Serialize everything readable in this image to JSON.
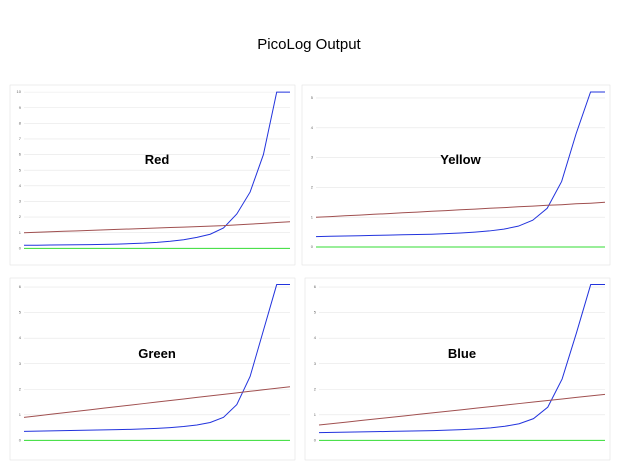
{
  "title": "PicoLog Output",
  "chart_data": [
    {
      "type": "line",
      "title": "Red",
      "x": [
        0,
        1,
        2,
        3,
        4,
        5,
        6,
        7,
        8,
        9,
        10,
        11,
        12,
        13,
        14,
        15,
        16,
        17,
        18,
        19,
        20
      ],
      "xlim": [
        0,
        20
      ],
      "ylim": [
        -0.3,
        10.2
      ],
      "yticks": [
        0,
        1,
        2,
        3,
        4,
        5,
        6,
        7,
        8,
        9,
        10
      ],
      "grid": true,
      "series": [
        {
          "color": "#2233dd",
          "values": [
            0.2,
            0.2,
            0.21,
            0.22,
            0.23,
            0.24,
            0.25,
            0.27,
            0.3,
            0.33,
            0.38,
            0.45,
            0.55,
            0.7,
            0.9,
            1.3,
            2.2,
            3.6,
            6.0,
            10,
            10
          ]
        },
        {
          "color": "#a05050",
          "values": [
            1.0,
            1.03,
            1.06,
            1.09,
            1.12,
            1.15,
            1.18,
            1.21,
            1.24,
            1.27,
            1.3,
            1.33,
            1.36,
            1.39,
            1.42,
            1.45,
            1.5,
            1.55,
            1.6,
            1.65,
            1.7
          ]
        },
        {
          "color": "#33dd33",
          "values": [
            0,
            0,
            0,
            0,
            0,
            0,
            0,
            0,
            0,
            0,
            0,
            0,
            0,
            0,
            0,
            0,
            0,
            0,
            0,
            0,
            0
          ]
        }
      ]
    },
    {
      "type": "line",
      "title": "Yellow",
      "x": [
        0,
        1,
        2,
        3,
        4,
        5,
        6,
        7,
        8,
        9,
        10,
        11,
        12,
        13,
        14,
        15,
        16,
        17,
        18,
        19,
        20
      ],
      "xlim": [
        0,
        20
      ],
      "ylim": [
        -0.2,
        5.3
      ],
      "yticks": [
        0,
        1,
        2,
        3,
        4,
        5
      ],
      "grid": true,
      "series": [
        {
          "color": "#2233dd",
          "values": [
            0.35,
            0.36,
            0.37,
            0.38,
            0.39,
            0.4,
            0.41,
            0.42,
            0.43,
            0.45,
            0.47,
            0.5,
            0.54,
            0.6,
            0.7,
            0.9,
            1.3,
            2.2,
            3.8,
            5.2,
            5.2
          ]
        },
        {
          "color": "#a05050",
          "values": [
            1.0,
            1.02,
            1.05,
            1.07,
            1.1,
            1.12,
            1.15,
            1.17,
            1.2,
            1.22,
            1.25,
            1.27,
            1.3,
            1.32,
            1.35,
            1.37,
            1.4,
            1.42,
            1.45,
            1.47,
            1.5
          ]
        },
        {
          "color": "#33dd33",
          "values": [
            0,
            0,
            0,
            0,
            0,
            0,
            0,
            0,
            0,
            0,
            0,
            0,
            0,
            0,
            0,
            0,
            0,
            0,
            0,
            0,
            0
          ]
        }
      ]
    },
    {
      "type": "line",
      "title": "Green",
      "x": [
        0,
        1,
        2,
        3,
        4,
        5,
        6,
        7,
        8,
        9,
        10,
        11,
        12,
        13,
        14,
        15,
        16,
        17,
        18,
        19,
        20
      ],
      "xlim": [
        0,
        20
      ],
      "ylim": [
        -0.3,
        6.2
      ],
      "yticks": [
        0,
        1,
        2,
        3,
        4,
        5,
        6
      ],
      "grid": true,
      "series": [
        {
          "color": "#2233dd",
          "values": [
            0.35,
            0.36,
            0.37,
            0.38,
            0.39,
            0.4,
            0.41,
            0.42,
            0.43,
            0.45,
            0.47,
            0.5,
            0.54,
            0.6,
            0.7,
            0.9,
            1.4,
            2.5,
            4.3,
            6.1,
            6.1
          ]
        },
        {
          "color": "#a05050",
          "values": [
            0.9,
            0.96,
            1.02,
            1.08,
            1.14,
            1.2,
            1.26,
            1.32,
            1.38,
            1.44,
            1.5,
            1.56,
            1.62,
            1.68,
            1.74,
            1.8,
            1.86,
            1.92,
            1.98,
            2.04,
            2.1
          ]
        },
        {
          "color": "#33dd33",
          "values": [
            0,
            0,
            0,
            0,
            0,
            0,
            0,
            0,
            0,
            0,
            0,
            0,
            0,
            0,
            0,
            0,
            0,
            0,
            0,
            0,
            0
          ]
        }
      ]
    },
    {
      "type": "line",
      "title": "Blue",
      "x": [
        0,
        1,
        2,
        3,
        4,
        5,
        6,
        7,
        8,
        9,
        10,
        11,
        12,
        13,
        14,
        15,
        16,
        17,
        18,
        19,
        20
      ],
      "xlim": [
        0,
        20
      ],
      "ylim": [
        -0.3,
        6.2
      ],
      "yticks": [
        0,
        1,
        2,
        3,
        4,
        5,
        6
      ],
      "grid": true,
      "series": [
        {
          "color": "#2233dd",
          "values": [
            0.3,
            0.31,
            0.32,
            0.33,
            0.34,
            0.35,
            0.36,
            0.37,
            0.38,
            0.4,
            0.42,
            0.45,
            0.49,
            0.55,
            0.65,
            0.85,
            1.3,
            2.4,
            4.2,
            6.1,
            6.1
          ]
        },
        {
          "color": "#a05050",
          "values": [
            0.6,
            0.66,
            0.72,
            0.78,
            0.84,
            0.9,
            0.96,
            1.02,
            1.08,
            1.14,
            1.2,
            1.26,
            1.32,
            1.38,
            1.44,
            1.5,
            1.56,
            1.62,
            1.68,
            1.74,
            1.8
          ]
        },
        {
          "color": "#33dd33",
          "values": [
            0,
            0,
            0,
            0,
            0,
            0,
            0,
            0,
            0,
            0,
            0,
            0,
            0,
            0,
            0,
            0,
            0,
            0,
            0,
            0,
            0
          ]
        }
      ]
    }
  ]
}
